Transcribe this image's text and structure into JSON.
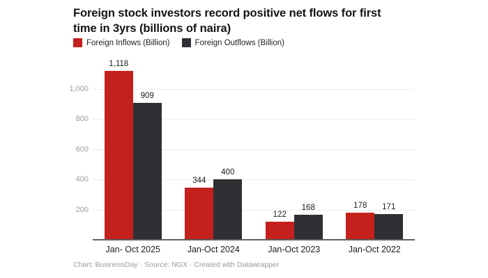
{
  "header": {
    "title_lines": [
      "Foreign stock investors record positive net flows for first",
      "time in 3yrs (billions of naira)"
    ]
  },
  "legend": {
    "items": [
      {
        "label": "Foreign Inflows (Billion)",
        "color": "#c4211e"
      },
      {
        "label": "Foreign Outflows (Billion)",
        "color": "#2e3033"
      }
    ]
  },
  "footer": {
    "credit": "Chart: BusinessDay · Source: NGX · Created with Datawrapper"
  },
  "chart_data": {
    "type": "bar",
    "title": "Foreign stock investors record positive net flows for first time in 3yrs (billions of naira)",
    "categories": [
      "Jan- Oct 2025",
      "Jan-Oct 2024",
      "Jan-Oct 2023",
      "Jan-Oct 2022"
    ],
    "series": [
      {
        "name": "Foreign Inflows (Billion)",
        "color": "#c4211e",
        "values": [
          1118,
          344,
          122,
          178
        ],
        "value_labels": [
          "1,118",
          "344",
          "122",
          "178"
        ]
      },
      {
        "name": "Foreign Outflows (Billion)",
        "color": "#2e3033",
        "values": [
          909,
          400,
          168,
          171
        ],
        "value_labels": [
          "909",
          "400",
          "168",
          "171"
        ]
      }
    ],
    "yticks": [
      {
        "value": 200,
        "label": "200"
      },
      {
        "value": 400,
        "label": "400"
      },
      {
        "value": 600,
        "label": "600"
      },
      {
        "value": 800,
        "label": "800"
      },
      {
        "value": 1000,
        "label": "1,000"
      }
    ],
    "ylim": [
      0,
      1150
    ],
    "grid": true,
    "legend_position": "top",
    "colors": {
      "axis_text": "#9c9c9c",
      "grid_line": "#ebebeb",
      "baseline": "#606060",
      "value_label": "#1c1c1c",
      "category_label": "#1c1c1c"
    }
  }
}
